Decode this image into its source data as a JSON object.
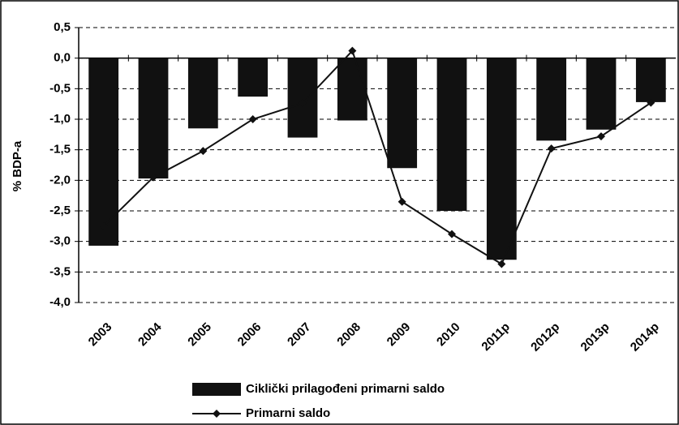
{
  "chart_data": {
    "type": "bar_line",
    "ylabel": "% BDP-a",
    "categories": [
      "2003",
      "2004",
      "2005",
      "2006",
      "2007",
      "2008",
      "2009",
      "2010",
      "2011p",
      "2012p",
      "2013p",
      "2014p"
    ],
    "series": [
      {
        "name": "Ciklički prilagođeni primarni saldo",
        "type": "bar",
        "color": "#111111",
        "values": [
          -3.07,
          -1.97,
          -1.15,
          -0.63,
          -1.3,
          -1.02,
          -1.8,
          -2.5,
          -3.3,
          -1.35,
          -1.17,
          -0.72
        ]
      },
      {
        "name": "Primarni saldo",
        "type": "line",
        "color": "#111111",
        "values": [
          -2.75,
          -1.95,
          -1.52,
          -1.0,
          -0.74,
          0.12,
          -2.35,
          -2.88,
          -3.37,
          -1.48,
          -1.28,
          -0.73
        ]
      }
    ],
    "ylim": [
      -4.0,
      0.5
    ],
    "yticks": [
      {
        "value": -4.0,
        "label": "-4,0"
      },
      {
        "value": -3.5,
        "label": "-3,5"
      },
      {
        "value": -3.0,
        "label": "-3,0"
      },
      {
        "value": -2.5,
        "label": "-2,5"
      },
      {
        "value": -2.0,
        "label": "-2,0"
      },
      {
        "value": -1.5,
        "label": "-1,5"
      },
      {
        "value": -1.0,
        "label": "-1,0"
      },
      {
        "value": -0.5,
        "label": "-0,5"
      },
      {
        "value": 0.0,
        "label": "0,0"
      },
      {
        "value": 0.5,
        "label": "0,5"
      }
    ],
    "grid": true,
    "legend": "bottom"
  }
}
